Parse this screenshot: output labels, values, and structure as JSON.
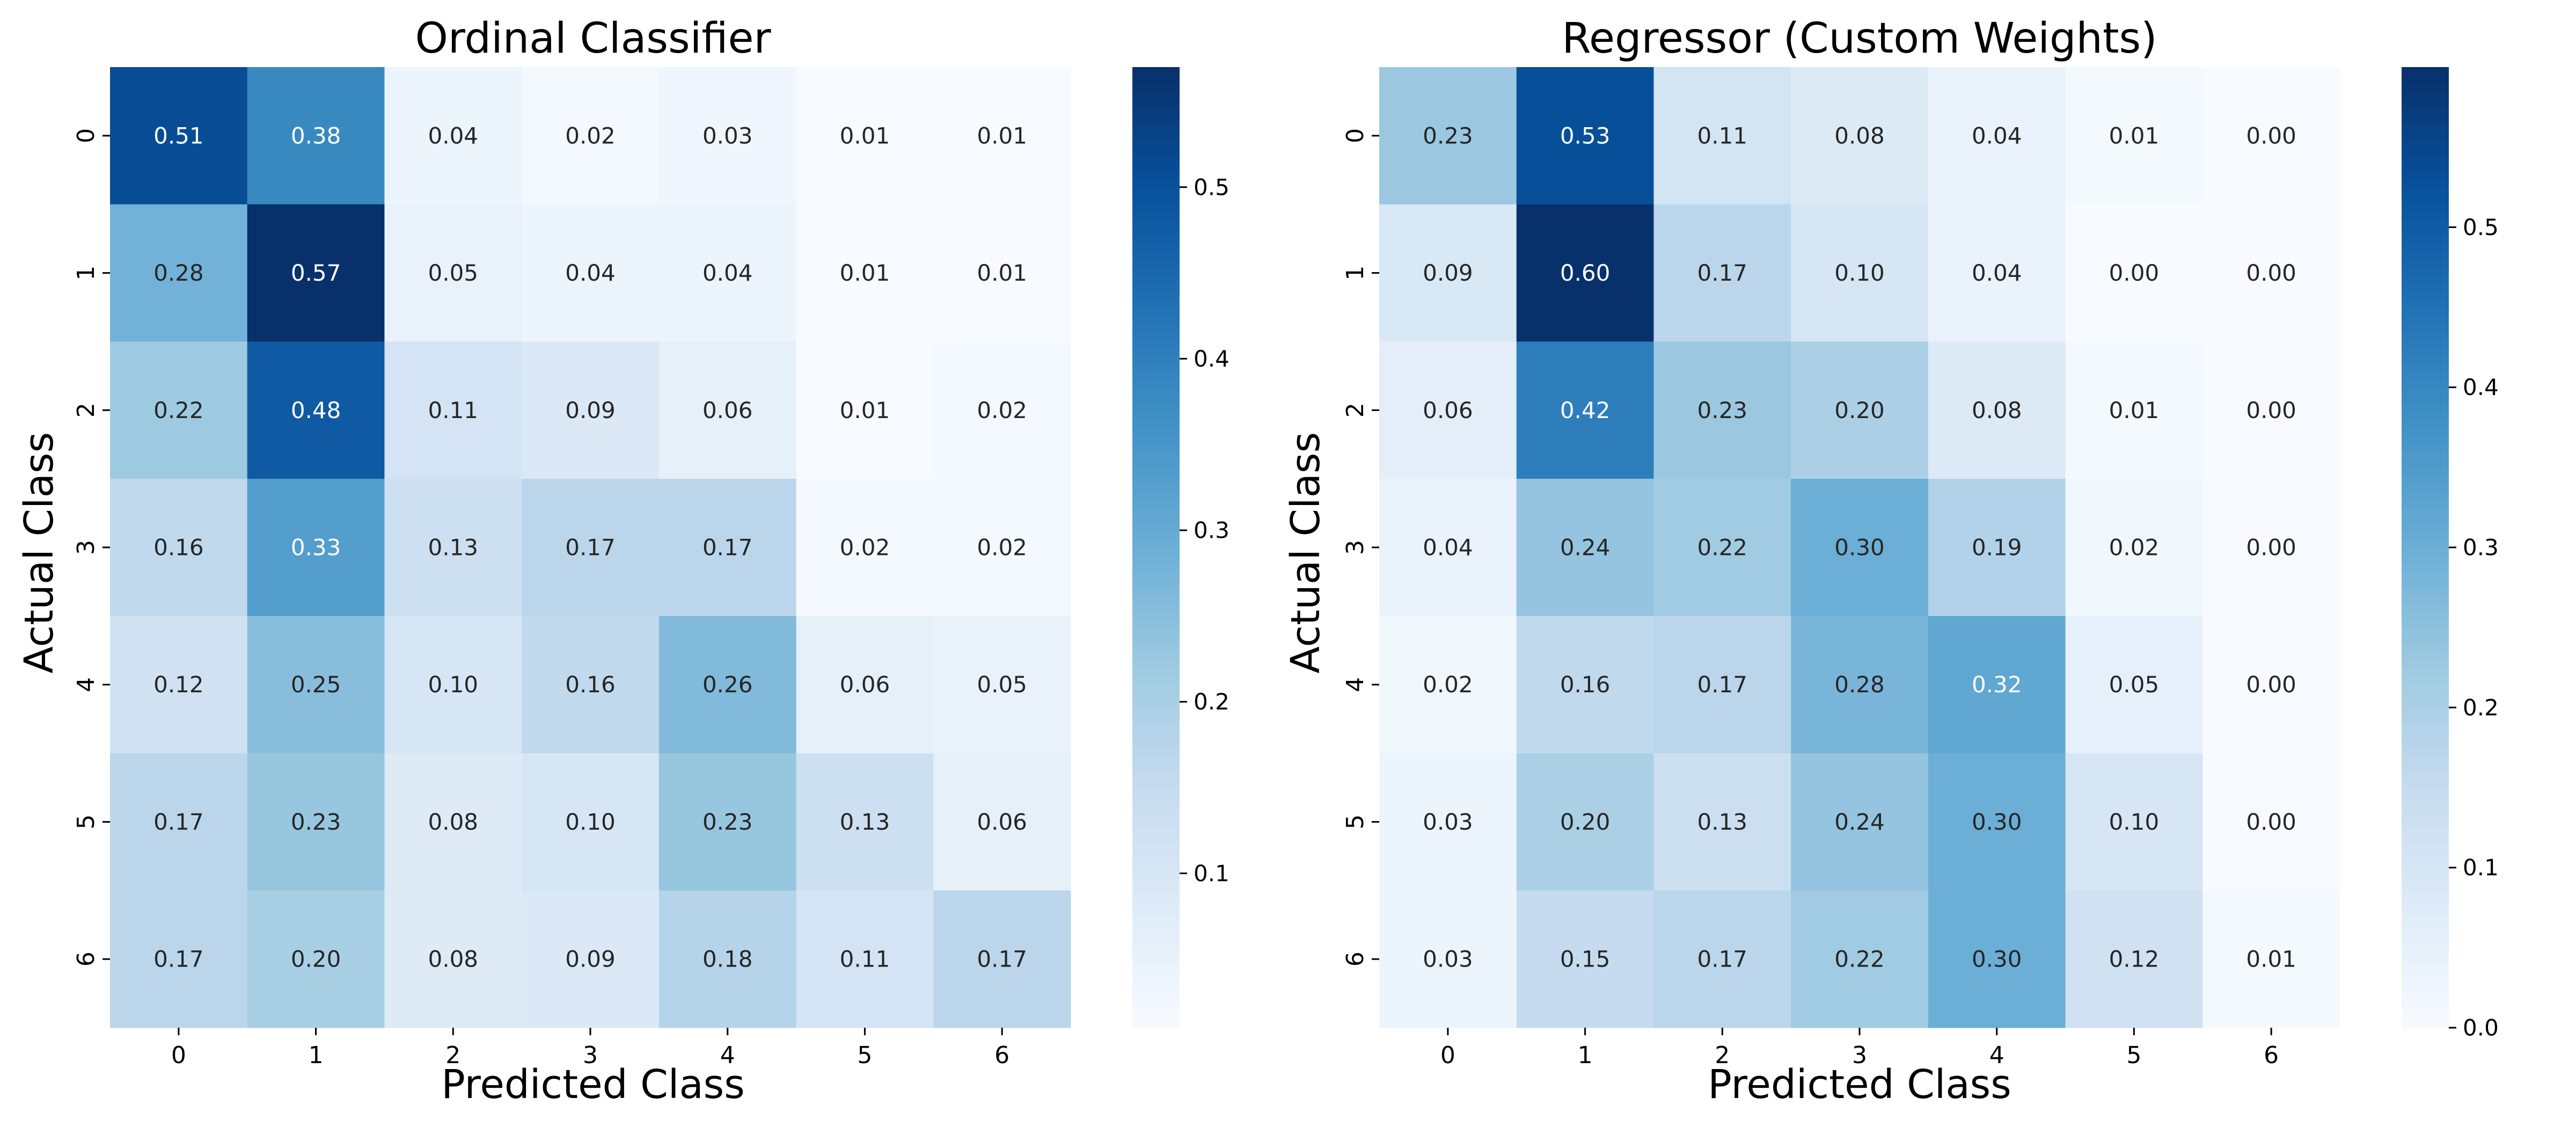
{
  "chart_data": [
    {
      "type": "heatmap",
      "title": "Ordinal Classifier",
      "xlabel": "Predicted Class",
      "ylabel": "Actual Class",
      "x_categories": [
        "0",
        "1",
        "2",
        "3",
        "4",
        "5",
        "6"
      ],
      "y_categories": [
        "0",
        "1",
        "2",
        "3",
        "4",
        "5",
        "6"
      ],
      "values": [
        [
          0.51,
          0.38,
          0.04,
          0.02,
          0.03,
          0.01,
          0.01
        ],
        [
          0.28,
          0.57,
          0.05,
          0.04,
          0.04,
          0.01,
          0.01
        ],
        [
          0.22,
          0.48,
          0.11,
          0.09,
          0.06,
          0.01,
          0.02
        ],
        [
          0.16,
          0.33,
          0.13,
          0.17,
          0.17,
          0.02,
          0.02
        ],
        [
          0.12,
          0.25,
          0.1,
          0.16,
          0.26,
          0.06,
          0.05
        ],
        [
          0.17,
          0.23,
          0.08,
          0.1,
          0.23,
          0.13,
          0.06
        ],
        [
          0.17,
          0.2,
          0.08,
          0.09,
          0.18,
          0.11,
          0.17
        ]
      ],
      "colormap": "Blues",
      "colorbar": {
        "min": 0.01,
        "max": 0.57,
        "ticks": [
          0.1,
          0.2,
          0.3,
          0.4,
          0.5
        ],
        "tick_labels": [
          "0.1",
          "0.2",
          "0.3",
          "0.4",
          "0.5"
        ]
      }
    },
    {
      "type": "heatmap",
      "title": "Regressor (Custom Weights)",
      "xlabel": "Predicted Class",
      "ylabel": "Actual Class",
      "x_categories": [
        "0",
        "1",
        "2",
        "3",
        "4",
        "5",
        "6"
      ],
      "y_categories": [
        "0",
        "1",
        "2",
        "3",
        "4",
        "5",
        "6"
      ],
      "values": [
        [
          0.23,
          0.53,
          0.11,
          0.08,
          0.04,
          0.01,
          0.0
        ],
        [
          0.09,
          0.6,
          0.17,
          0.1,
          0.04,
          0.0,
          0.0
        ],
        [
          0.06,
          0.42,
          0.23,
          0.2,
          0.08,
          0.01,
          0.0
        ],
        [
          0.04,
          0.24,
          0.22,
          0.3,
          0.19,
          0.02,
          0.0
        ],
        [
          0.02,
          0.16,
          0.17,
          0.28,
          0.32,
          0.05,
          0.0
        ],
        [
          0.03,
          0.2,
          0.13,
          0.24,
          0.3,
          0.1,
          0.0
        ],
        [
          0.03,
          0.15,
          0.17,
          0.22,
          0.3,
          0.12,
          0.01
        ]
      ],
      "colormap": "Blues",
      "colorbar": {
        "min": 0.0,
        "max": 0.6,
        "ticks": [
          0.0,
          0.1,
          0.2,
          0.3,
          0.4,
          0.5
        ],
        "tick_labels": [
          "0.0",
          "0.1",
          "0.2",
          "0.3",
          "0.4",
          "0.5"
        ]
      }
    }
  ],
  "colors": {
    "blues_scale": [
      "#f7fbff",
      "#deebf7",
      "#c6dbef",
      "#9ecae1",
      "#6baed6",
      "#4292c6",
      "#2171b5",
      "#08519c",
      "#08306b"
    ],
    "dark_text": "#262626",
    "light_text": "#ffffff"
  }
}
